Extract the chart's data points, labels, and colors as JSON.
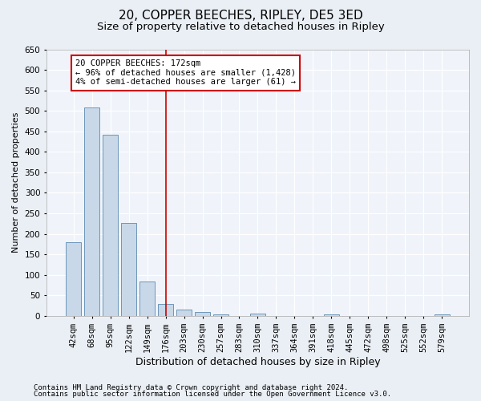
{
  "title1": "20, COPPER BEECHES, RIPLEY, DE5 3ED",
  "title2": "Size of property relative to detached houses in Ripley",
  "xlabel": "Distribution of detached houses by size in Ripley",
  "ylabel": "Number of detached properties",
  "categories": [
    "42sqm",
    "68sqm",
    "95sqm",
    "122sqm",
    "149sqm",
    "176sqm",
    "203sqm",
    "230sqm",
    "257sqm",
    "283sqm",
    "310sqm",
    "337sqm",
    "364sqm",
    "391sqm",
    "418sqm",
    "445sqm",
    "472sqm",
    "498sqm",
    "525sqm",
    "552sqm",
    "579sqm"
  ],
  "values": [
    180,
    508,
    441,
    226,
    84,
    28,
    15,
    9,
    4,
    0,
    6,
    0,
    0,
    0,
    4,
    0,
    0,
    0,
    0,
    0,
    4
  ],
  "bar_color": "#c8d8e8",
  "bar_edge_color": "#5a8ab0",
  "vline_x_index": 5,
  "vline_color": "#cc0000",
  "annotation_text": "20 COPPER BEECHES: 172sqm\n← 96% of detached houses are smaller (1,428)\n4% of semi-detached houses are larger (61) →",
  "annotation_box_color": "#ffffff",
  "annotation_box_edge_color": "#cc0000",
  "ylim": [
    0,
    650
  ],
  "yticks": [
    0,
    50,
    100,
    150,
    200,
    250,
    300,
    350,
    400,
    450,
    500,
    550,
    600,
    650
  ],
  "footer1": "Contains HM Land Registry data © Crown copyright and database right 2024.",
  "footer2": "Contains public sector information licensed under the Open Government Licence v3.0.",
  "background_color": "#eaeff5",
  "plot_background_color": "#f0f4fa",
  "grid_color": "#ffffff",
  "title1_fontsize": 11,
  "title2_fontsize": 9.5,
  "xlabel_fontsize": 9,
  "ylabel_fontsize": 8,
  "tick_fontsize": 7.5,
  "annotation_fontsize": 7.5,
  "footer_fontsize": 6.5
}
